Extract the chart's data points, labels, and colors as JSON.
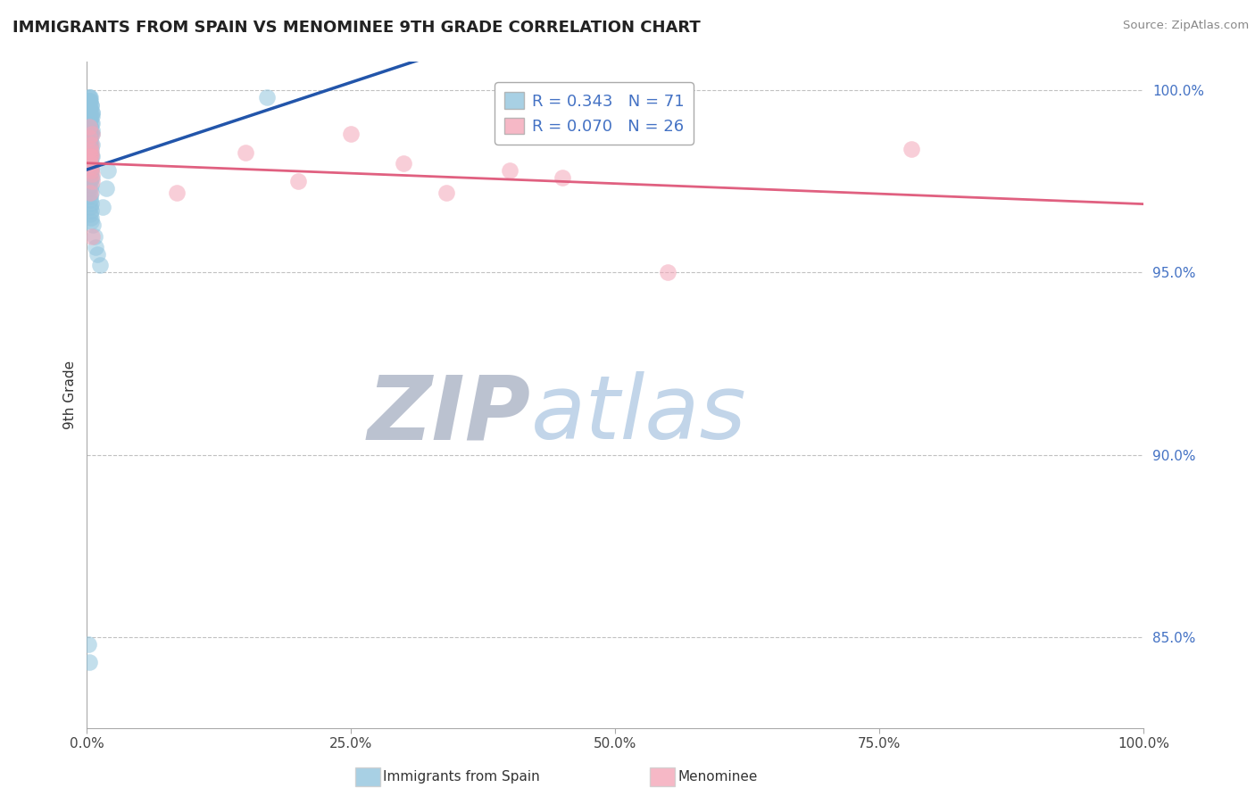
{
  "title": "IMMIGRANTS FROM SPAIN VS MENOMINEE 9TH GRADE CORRELATION CHART",
  "source": "Source: ZipAtlas.com",
  "ylabel": "9th Grade",
  "blue_R": 0.343,
  "blue_N": 71,
  "pink_R": 0.07,
  "pink_N": 26,
  "blue_color": "#92c5de",
  "pink_color": "#f4a6b8",
  "blue_line_color": "#2255aa",
  "pink_line_color": "#e06080",
  "watermark_ZIP_color": "#c0c8d8",
  "watermark_atlas_color": "#b8cce4",
  "xlim": [
    0.0,
    1.0
  ],
  "ylim": [
    0.825,
    1.008
  ],
  "yticks": [
    0.85,
    0.9,
    0.95,
    1.0
  ],
  "ytick_labels": [
    "85.0%",
    "90.0%",
    "95.0%",
    "100.0%"
  ],
  "xticks": [
    0.0,
    0.25,
    0.5,
    0.75,
    1.0
  ],
  "xtick_labels": [
    "0.0%",
    "25.0%",
    "50.0%",
    "75.0%",
    "100.0%"
  ],
  "blue_scatter_x": [
    0.002,
    0.003,
    0.004,
    0.002,
    0.005,
    0.003,
    0.004,
    0.002,
    0.003,
    0.005,
    0.004,
    0.003,
    0.002,
    0.004,
    0.003,
    0.005,
    0.002,
    0.004,
    0.003,
    0.005,
    0.002,
    0.003,
    0.004,
    0.003,
    0.002,
    0.004,
    0.003,
    0.005,
    0.002,
    0.004,
    0.003,
    0.002,
    0.004,
    0.003,
    0.005,
    0.002,
    0.004,
    0.003,
    0.002,
    0.004,
    0.003,
    0.005,
    0.002,
    0.004,
    0.003,
    0.002,
    0.005,
    0.003,
    0.004,
    0.002,
    0.003,
    0.004,
    0.005,
    0.002,
    0.003,
    0.004,
    0.002,
    0.005,
    0.003,
    0.004,
    0.006,
    0.007,
    0.008,
    0.01,
    0.012,
    0.015,
    0.018,
    0.02,
    0.17,
    0.001,
    0.002
  ],
  "blue_scatter_y": [
    0.998,
    0.997,
    0.996,
    0.995,
    0.994,
    0.998,
    0.996,
    0.997,
    0.995,
    0.994,
    0.993,
    0.992,
    0.998,
    0.991,
    0.99,
    0.989,
    0.997,
    0.988,
    0.987,
    0.993,
    0.986,
    0.985,
    0.984,
    0.983,
    0.996,
    0.982,
    0.981,
    0.991,
    0.995,
    0.98,
    0.979,
    0.994,
    0.978,
    0.977,
    0.988,
    0.993,
    0.976,
    0.975,
    0.992,
    0.974,
    0.973,
    0.985,
    0.991,
    0.972,
    0.971,
    0.99,
    0.982,
    0.97,
    0.969,
    0.989,
    0.968,
    0.967,
    0.979,
    0.988,
    0.966,
    0.965,
    0.987,
    0.976,
    0.986,
    0.964,
    0.963,
    0.96,
    0.957,
    0.955,
    0.952,
    0.968,
    0.973,
    0.978,
    0.998,
    0.848,
    0.843
  ],
  "pink_scatter_x": [
    0.002,
    0.004,
    0.003,
    0.005,
    0.004,
    0.003,
    0.005,
    0.002,
    0.004,
    0.003,
    0.004,
    0.005,
    0.003,
    0.002,
    0.004,
    0.005,
    0.085,
    0.15,
    0.2,
    0.25,
    0.3,
    0.34,
    0.4,
    0.45,
    0.55,
    0.78
  ],
  "pink_scatter_y": [
    0.99,
    0.985,
    0.982,
    0.988,
    0.983,
    0.98,
    0.977,
    0.987,
    0.982,
    0.984,
    0.979,
    0.975,
    0.972,
    0.981,
    0.978,
    0.96,
    0.972,
    0.983,
    0.975,
    0.988,
    0.98,
    0.972,
    0.978,
    0.976,
    0.95,
    0.984
  ]
}
